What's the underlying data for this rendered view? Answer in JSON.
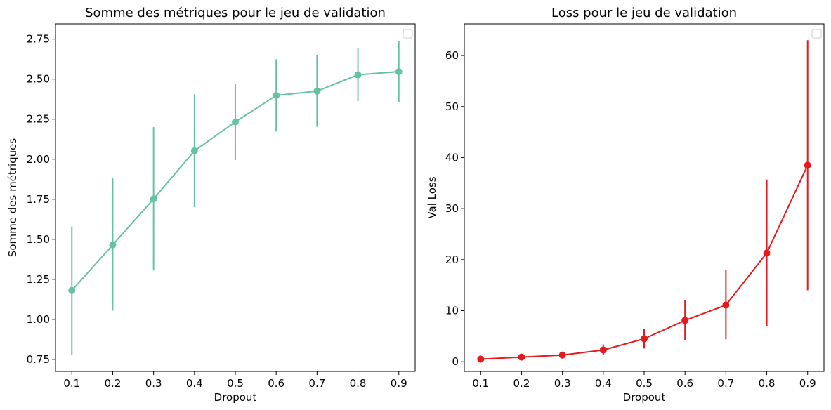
{
  "chart_data": [
    {
      "type": "line",
      "title": "Somme des métriques pour le jeu de validation",
      "xlabel": "Dropout",
      "ylabel": "Somme des métriques",
      "x": [
        0.1,
        0.2,
        0.3,
        0.4,
        0.5,
        0.6,
        0.7,
        0.8,
        0.9
      ],
      "x_ticks": [
        "0.1",
        "0.2",
        "0.3",
        "0.4",
        "0.5",
        "0.6",
        "0.7",
        "0.8",
        "0.9"
      ],
      "y_ticks": [
        "0.75",
        "1.00",
        "1.25",
        "1.50",
        "1.75",
        "2.00",
        "2.25",
        "2.50",
        "2.75"
      ],
      "xlim": [
        0.06,
        0.94
      ],
      "ylim": [
        0.675,
        2.845
      ],
      "series": [
        {
          "values": [
            1.18,
            1.465,
            1.752,
            2.052,
            2.233,
            2.398,
            2.425,
            2.527,
            2.547
          ],
          "err_low": [
            0.78,
            1.055,
            1.305,
            1.7,
            1.995,
            2.172,
            2.202,
            2.362,
            2.358
          ],
          "err_high": [
            1.58,
            1.88,
            2.2,
            2.405,
            2.472,
            2.624,
            2.65,
            2.695,
            2.74
          ],
          "color": "#66c2a5"
        }
      ],
      "legend": "top-right",
      "grid": false
    },
    {
      "type": "line",
      "title": "Loss pour le jeu de validation",
      "xlabel": "Dropout",
      "ylabel": "Val Loss",
      "x": [
        0.1,
        0.2,
        0.3,
        0.4,
        0.5,
        0.6,
        0.7,
        0.8,
        0.9
      ],
      "x_ticks": [
        "0.1",
        "0.2",
        "0.3",
        "0.4",
        "0.5",
        "0.6",
        "0.7",
        "0.8",
        "0.9"
      ],
      "y_ticks": [
        "0",
        "10",
        "20",
        "30",
        "40",
        "50",
        "60"
      ],
      "xlim": [
        0.06,
        0.94
      ],
      "ylim": [
        -1.9,
        66.2
      ],
      "series": [
        {
          "values": [
            0.5,
            0.9,
            1.3,
            2.3,
            4.5,
            8.1,
            11.1,
            21.3,
            38.5
          ],
          "err_low": [
            0.3,
            0.6,
            1.0,
            1.3,
            2.6,
            4.2,
            4.4,
            6.9,
            14.0
          ],
          "err_high": [
            0.7,
            1.2,
            1.6,
            3.4,
            6.4,
            12.1,
            18.0,
            35.7,
            63.0
          ],
          "color": "#e41a1c"
        }
      ],
      "legend": "top-right",
      "grid": false
    }
  ]
}
